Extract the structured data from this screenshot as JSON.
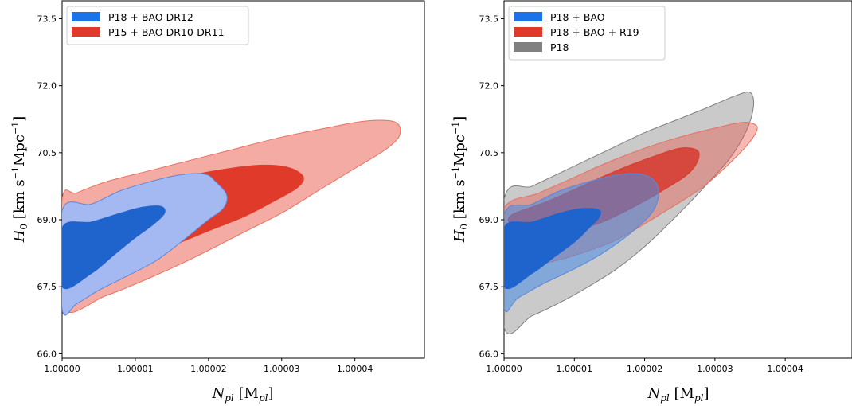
{
  "chart_data": [
    {
      "type": "contour",
      "title": "",
      "xlabel": "N_pl [M_pl]",
      "ylabel": "H_0 [km s^-1 Mpc^-1]",
      "xlim": [
        1.0,
        1.0000495
      ],
      "ylim": [
        65.9,
        73.9
      ],
      "x_ticks": [
        "1.00000",
        "1.00001",
        "1.00002",
        "1.00003",
        "1.00004"
      ],
      "x_tick_values": [
        1.0,
        1.00001,
        1.00002,
        1.00003,
        1.00004
      ],
      "y_ticks": [
        "66.0",
        "67.5",
        "69.0",
        "70.5",
        "72.0",
        "73.5"
      ],
      "y_tick_values": [
        66.0,
        67.5,
        69.0,
        70.5,
        72.0,
        73.5
      ],
      "legend_position": "upper-left",
      "series": [
        {
          "name": "P15 + BAO DR10-DR11",
          "color": "#e03a2b",
          "levels": [
            {
              "sigma": 2,
              "fill": "#f4aba3",
              "edge": "#e8705f",
              "x": [
                1.0,
                1.000002,
                1.000006,
                1.000012,
                1.000018,
                1.000024,
                1.00003,
                1.000036,
                1.000041,
                1.0000445,
                1.000046,
                1.000046,
                1.000044,
                1.00004,
                1.000035,
                1.00003,
                1.000024,
                1.000018,
                1.000012,
                1.000006,
                1.0
              ],
              "y": [
                69.45,
                69.6,
                69.85,
                70.1,
                70.35,
                70.6,
                70.85,
                71.05,
                71.2,
                71.22,
                71.12,
                70.85,
                70.55,
                70.15,
                69.65,
                69.15,
                68.65,
                68.15,
                67.7,
                67.3,
                67.05
              ]
            },
            {
              "sigma": 1,
              "fill": "#e03a2b",
              "edge": "#e03a2b",
              "x": [
                1.0,
                1.000004,
                1.000008,
                1.000013,
                1.000018,
                1.000023,
                1.000027,
                1.00003,
                1.000032,
                1.000033,
                1.000032,
                1.000029,
                1.000025,
                1.00002,
                1.000015,
                1.00001,
                1.000006,
                1.000003,
                1.0
              ],
              "y": [
                68.7,
                69.05,
                69.4,
                69.75,
                70.0,
                70.15,
                70.22,
                70.2,
                70.1,
                69.92,
                69.7,
                69.42,
                69.08,
                68.75,
                68.42,
                68.15,
                67.95,
                67.85,
                67.85
              ]
            }
          ]
        },
        {
          "name": "P18 + BAO DR12",
          "color": "#1a73e8",
          "levels": [
            {
              "sigma": 2,
              "fill": "#a4b8f2",
              "edge": "#5b86d9",
              "x": [
                1.0,
                1.000004,
                1.000008,
                1.000012,
                1.000016,
                1.0000195,
                1.000021,
                1.0000225,
                1.000022,
                1.00002,
                1.000017,
                1.000013,
                1.000009,
                1.000005,
                1.000002,
                1.0
              ],
              "y": [
                69.2,
                69.35,
                69.65,
                69.85,
                70.0,
                70.02,
                69.85,
                69.55,
                69.25,
                69.0,
                68.6,
                68.1,
                67.75,
                67.42,
                67.12,
                67.0
              ]
            },
            {
              "sigma": 1,
              "fill": "#1f63cc",
              "edge": "#1f63cc",
              "x": [
                1.0,
                1.000004,
                1.000008,
                1.000011,
                1.0000135,
                1.000014,
                1.0000125,
                1.00001,
                1.000007,
                1.000004,
                1.0
              ],
              "y": [
                68.82,
                68.95,
                69.15,
                69.28,
                69.3,
                69.15,
                68.9,
                68.6,
                68.2,
                67.8,
                67.5
              ]
            }
          ]
        }
      ]
    },
    {
      "type": "contour",
      "title": "",
      "xlabel": "N_pl [M_pl]",
      "ylabel": "H_0 [km s^-1 Mpc^-1]",
      "xlim": [
        1.0,
        1.0000495
      ],
      "ylim": [
        65.9,
        73.9
      ],
      "x_ticks": [
        "1.00000",
        "1.00001",
        "1.00002",
        "1.00003",
        "1.00004"
      ],
      "x_tick_values": [
        1.0,
        1.00001,
        1.00002,
        1.00003,
        1.00004
      ],
      "y_ticks": [
        "66.0",
        "67.5",
        "69.0",
        "70.5",
        "72.0",
        "73.5"
      ],
      "y_tick_values": [
        66.0,
        67.5,
        69.0,
        70.5,
        72.0,
        73.5
      ],
      "legend_position": "upper-left",
      "series": [
        {
          "name": "P18",
          "color": "#808080",
          "levels": [
            {
              "sigma": 2,
              "fill": "rgba(150,150,150,0.5)",
              "edge": "#808080",
              "x": [
                1.0,
                1.000004,
                1.000008,
                1.000012,
                1.000016,
                1.00002,
                1.000024,
                1.000028,
                1.000031,
                1.000033,
                1.000035,
                1.0000355,
                1.0000345,
                1.000032,
                1.000028,
                1.000024,
                1.00002,
                1.000016,
                1.000012,
                1.000008,
                1.000004,
                1.0
              ],
              "y": [
                69.45,
                69.75,
                70.05,
                70.35,
                70.65,
                70.95,
                71.2,
                71.45,
                71.65,
                71.78,
                71.85,
                71.55,
                71.0,
                70.35,
                69.65,
                69.0,
                68.4,
                67.9,
                67.5,
                67.15,
                66.85,
                66.6
              ]
            }
          ]
        },
        {
          "name": "P18 + BAO + R19",
          "color": "#e03a2b",
          "levels": [
            {
              "sigma": 2,
              "fill": "rgba(232,80,66,0.4)",
              "edge": "#e8705f",
              "x": [
                1.0,
                1.000005,
                1.00001,
                1.000015,
                1.00002,
                1.000025,
                1.00003,
                1.000034,
                1.000036,
                1.000035,
                1.000032,
                1.000028,
                1.000022,
                1.000016,
                1.00001,
                1.000005,
                1.0
              ],
              "y": [
                69.25,
                69.6,
                69.95,
                70.3,
                70.6,
                70.85,
                71.05,
                71.18,
                71.08,
                70.75,
                70.25,
                69.7,
                69.1,
                68.55,
                68.2,
                68.0,
                67.9
              ]
            },
            {
              "sigma": 1,
              "fill": "rgba(214,40,28,0.72)",
              "edge": "#d63a2b",
              "x": [
                1.000001,
                1.000006,
                1.000011,
                1.000016,
                1.000021,
                1.000025,
                1.0000275,
                1.0000275,
                1.000026,
                1.000022,
                1.000018,
                1.000014,
                1.00001,
                1.000006,
                1.000002,
                1.000001
              ],
              "y": [
                69.1,
                69.4,
                69.75,
                70.1,
                70.4,
                70.6,
                70.55,
                70.3,
                70.0,
                69.6,
                69.25,
                68.95,
                68.75,
                68.6,
                68.55,
                68.85
              ]
            }
          ]
        },
        {
          "name": "P18 + BAO",
          "color": "#1a73e8",
          "levels": [
            {
              "sigma": 2,
              "fill": "rgba(70,140,230,0.55)",
              "edge": "#5b86d9",
              "x": [
                1.0,
                1.000004,
                1.000008,
                1.000012,
                1.000016,
                1.0000195,
                1.0000215,
                1.000022,
                1.000021,
                1.000018,
                1.000014,
                1.00001,
                1.000006,
                1.000002,
                1.0
              ],
              "y": [
                69.1,
                69.35,
                69.65,
                69.85,
                70.0,
                70.02,
                69.85,
                69.55,
                69.15,
                68.7,
                68.25,
                67.9,
                67.6,
                67.25,
                67.05
              ]
            },
            {
              "sigma": 1,
              "fill": "#1f63cc",
              "edge": "#1f63cc",
              "x": [
                1.0,
                1.000004,
                1.000008,
                1.000011,
                1.0000135,
                1.0000135,
                1.000012,
                1.00001,
                1.000007,
                1.000004,
                1.0
              ],
              "y": [
                68.82,
                68.95,
                69.15,
                69.25,
                69.22,
                69.05,
                68.8,
                68.5,
                68.15,
                67.8,
                67.5
              ]
            }
          ]
        }
      ]
    }
  ],
  "legends": [
    {
      "entries": [
        {
          "label": "P18 + BAO DR12",
          "color": "#1a73e8"
        },
        {
          "label": "P15 + BAO DR10-DR11",
          "color": "#e03a2b"
        }
      ]
    },
    {
      "entries": [
        {
          "label": "P18 + BAO",
          "color": "#1a73e8"
        },
        {
          "label": "P18 + BAO + R19",
          "color": "#e03a2b"
        },
        {
          "label": "P18",
          "color": "#808080"
        }
      ]
    }
  ]
}
